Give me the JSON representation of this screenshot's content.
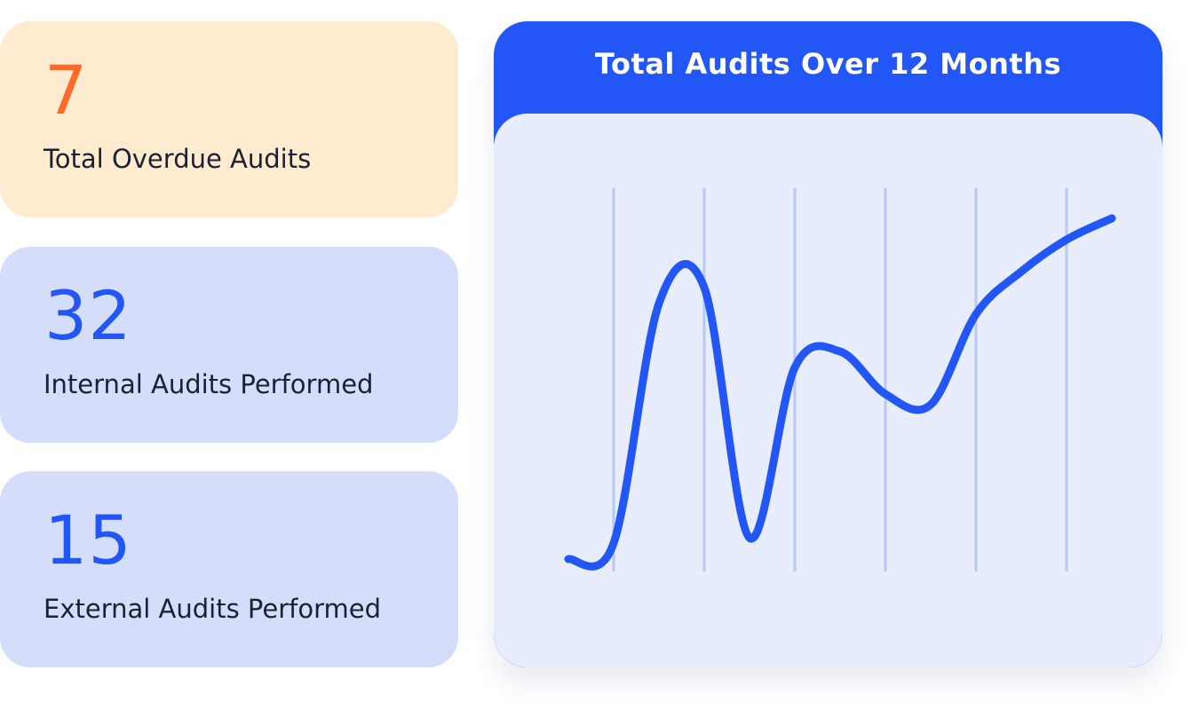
{
  "stats": [
    {
      "value": "7",
      "label": "Total Overdue Audits"
    },
    {
      "value": "32",
      "label": "Internal Audits Performed"
    },
    {
      "value": "15",
      "label": "External Audits Performed"
    }
  ],
  "colors": {
    "overdue_accent": "#ff6a2b",
    "primary_blue": "#2356f7",
    "overdue_card_bg": "#ffebcf",
    "stat_card_bg": "#d4defb",
    "chart_bg": "#e7edfc",
    "gridline": "#b7c9f3"
  },
  "chart_data": {
    "type": "line",
    "title": "Total Audits Over 12 Months",
    "xlabel": "",
    "ylabel": "",
    "x": [
      0,
      1,
      2,
      3,
      4,
      5,
      6,
      7,
      8,
      9,
      10,
      11,
      12
    ],
    "values": [
      3,
      4.5,
      27,
      28.5,
      5,
      21,
      22.5,
      18.5,
      17.5,
      26,
      30,
      33,
      35
    ],
    "ylim": [
      0,
      40
    ],
    "xlim": [
      0,
      12
    ],
    "grid": "vertical",
    "gridlines_x": [
      1,
      3,
      5,
      7,
      9,
      11
    ],
    "legend": "none",
    "smooth": true
  }
}
